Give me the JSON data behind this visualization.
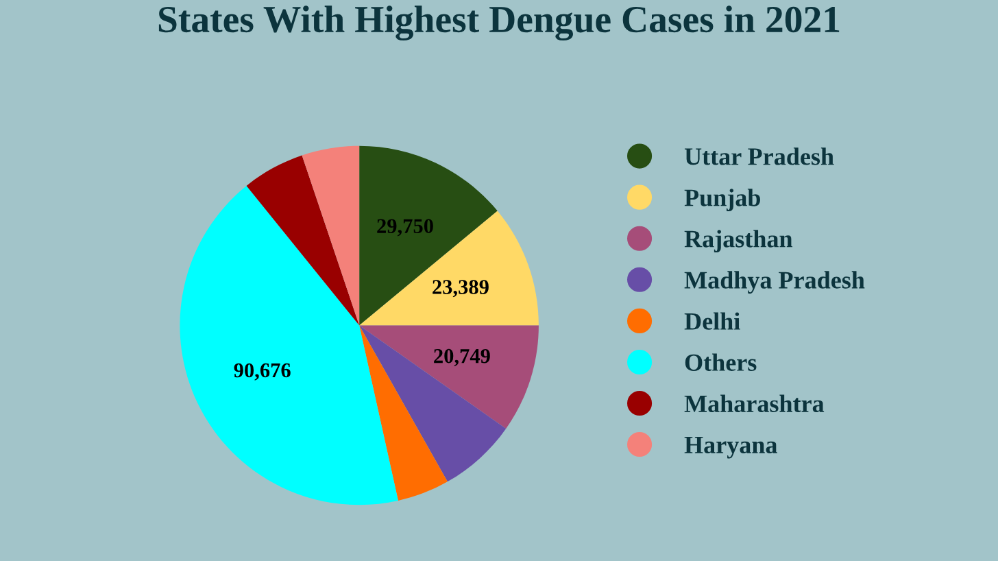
{
  "chart_data": {
    "type": "pie",
    "title": "States With Highest Dengue Cases in 2021",
    "categories": [
      "Uttar Pradesh",
      "Punjab",
      "Rajasthan",
      "Madhya Pradesh",
      "Delhi",
      "Others",
      "Maharashtra",
      "Haryana"
    ],
    "values": [
      29750,
      23389,
      20749,
      15000,
      10000,
      90676,
      12000,
      11000
    ],
    "value_labels": [
      "29,750",
      "23,389",
      "20,749",
      null,
      null,
      "90,676",
      null,
      null
    ],
    "colors": [
      "#274e13",
      "#ffd966",
      "#a64d79",
      "#674ea7",
      "#ff6d01",
      "#00ffff",
      "#990000",
      "#f4817a"
    ],
    "legend": "right"
  }
}
